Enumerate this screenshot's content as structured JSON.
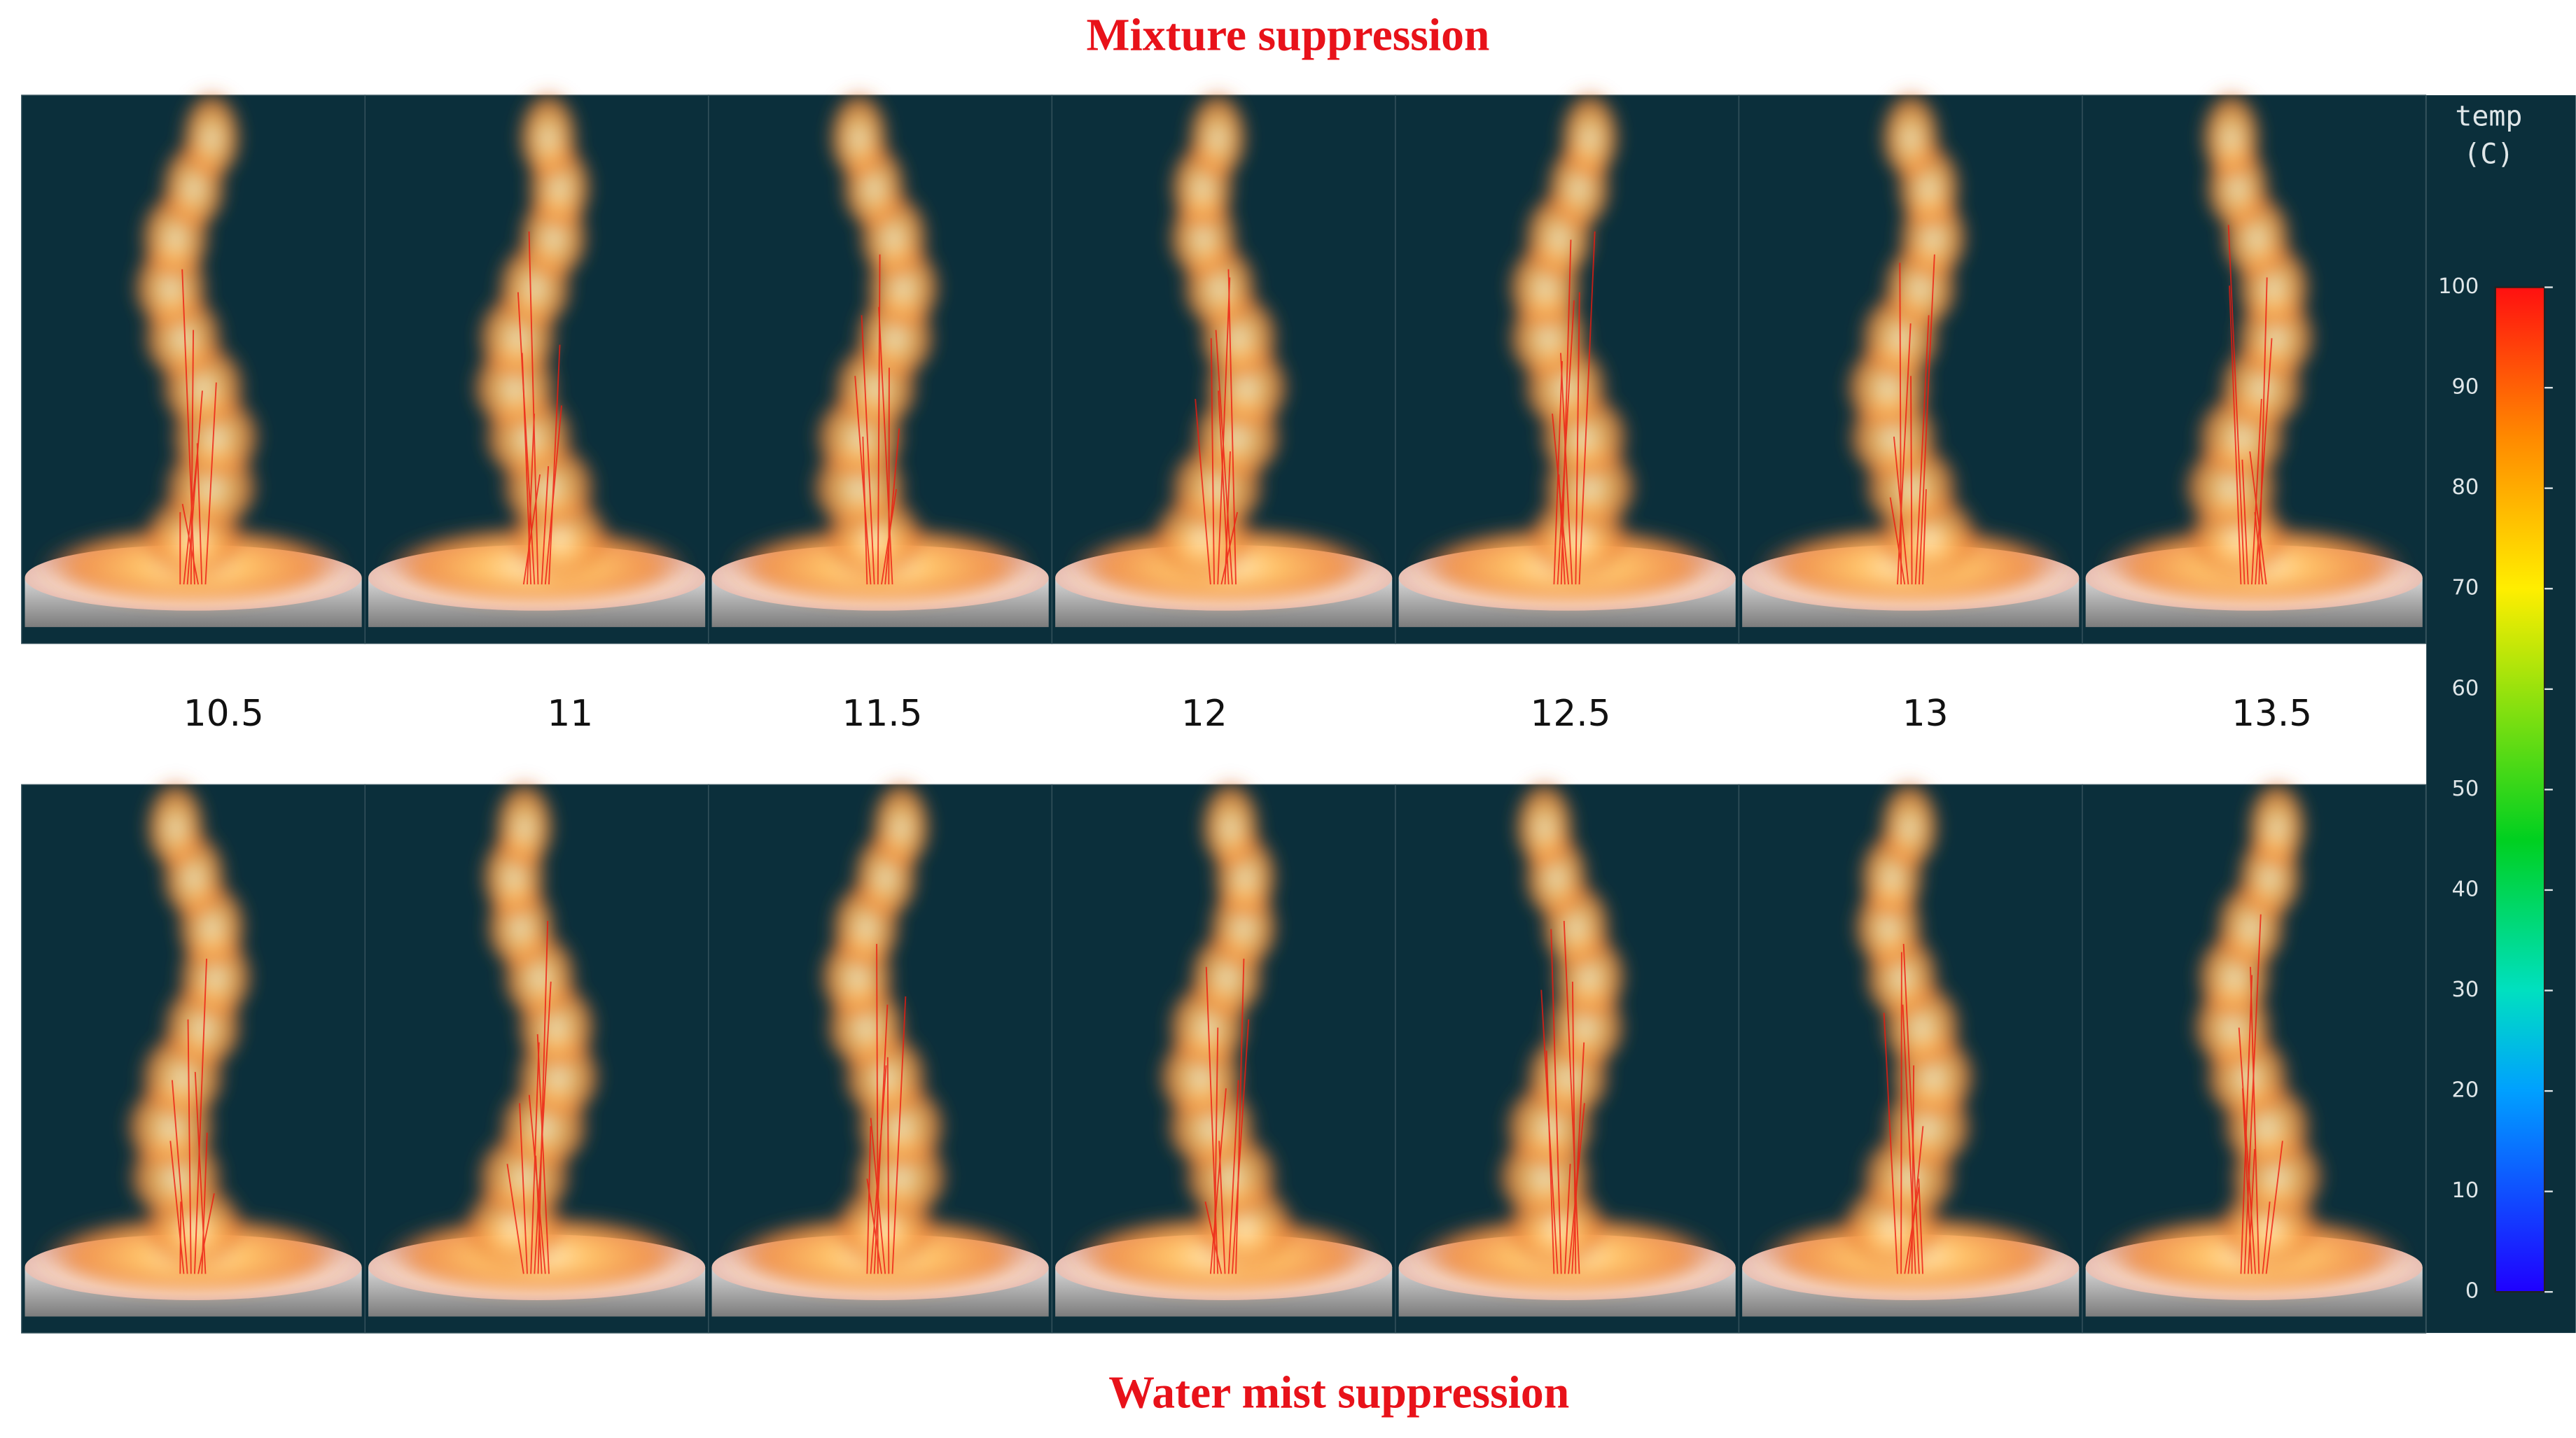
{
  "header": {
    "title": "Mixture suppression"
  },
  "footer": {
    "title": "Water mist suppression"
  },
  "time_labels": [
    "10.5",
    "11",
    "11.5",
    "12",
    "12.5",
    "13",
    "13.5"
  ],
  "colorbar": {
    "title": "temp",
    "unit": "(C)",
    "ticks": [
      0,
      10,
      20,
      30,
      40,
      50,
      60,
      70,
      80,
      90,
      100
    ]
  }
}
